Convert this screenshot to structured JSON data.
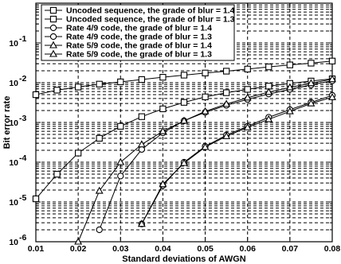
{
  "chart_data": {
    "type": "line",
    "title": "",
    "xlabel": "Standard deviations of AWGN",
    "ylabel": "Bit error rate",
    "xlim": [
      0.01,
      0.08
    ],
    "ylim": [
      1e-06,
      1
    ],
    "yscale": "log",
    "grid": "dashed",
    "legend_position": "top-left",
    "x_ticks": [
      "0.01",
      "0.02",
      "0.03",
      "0.04",
      "0.05",
      "0.06",
      "0.07",
      "0.08"
    ],
    "y_ticks": [
      {
        "base": "10",
        "exp": "-6",
        "value": 1e-06
      },
      {
        "base": "10",
        "exp": "-5",
        "value": 1e-05
      },
      {
        "base": "10",
        "exp": "-4",
        "value": 0.0001
      },
      {
        "base": "10",
        "exp": "-3",
        "value": 0.001
      },
      {
        "base": "10",
        "exp": "-2",
        "value": 0.01
      },
      {
        "base": "10",
        "exp": "-1",
        "value": 0.1
      }
    ],
    "series": [
      {
        "name": "Uncoded sequence, the grade of blur = 1.4",
        "marker": "square",
        "x": [
          0.01,
          0.015,
          0.02,
          0.025,
          0.03,
          0.035,
          0.04,
          0.045,
          0.05,
          0.055,
          0.06,
          0.065,
          0.07,
          0.075,
          0.08
        ],
        "y": [
          0.005,
          0.0065,
          0.0078,
          0.0092,
          0.0105,
          0.012,
          0.0137,
          0.0155,
          0.0175,
          0.0195,
          0.022,
          0.025,
          0.028,
          0.031,
          0.035
        ]
      },
      {
        "name": "Uncoded sequence, the grade of blur = 1.3",
        "marker": "square",
        "x": [
          0.01,
          0.015,
          0.02,
          0.025,
          0.03,
          0.035,
          0.04,
          0.045,
          0.05,
          0.055,
          0.06,
          0.065,
          0.07,
          0.075,
          0.08
        ],
        "y": [
          1.2e-05,
          5e-05,
          0.00017,
          0.0004,
          0.0008,
          0.0014,
          0.0022,
          0.0032,
          0.0044,
          0.0056,
          0.0068,
          0.0082,
          0.0096,
          0.011,
          0.0125
        ]
      },
      {
        "name": "Rate 4/9 code, the grade of blur = 1.4",
        "marker": "circle",
        "x": [
          0.035,
          0.04,
          0.045,
          0.05,
          0.055,
          0.06,
          0.065,
          0.07,
          0.075,
          0.08
        ],
        "y": [
          2.8e-06,
          2.6e-05,
          0.0001,
          0.00025,
          0.00048,
          0.0008,
          0.00135,
          0.0021,
          0.0032,
          0.0048
        ]
      },
      {
        "name": "Rate 4/9 code, the grade of blur = 1.3",
        "marker": "circle",
        "x": [
          0.025,
          0.03,
          0.035,
          0.04,
          0.045,
          0.05,
          0.055,
          0.06,
          0.065,
          0.07,
          0.075,
          0.08
        ],
        "y": [
          2e-06,
          4.5e-05,
          0.00021,
          0.00055,
          0.0011,
          0.0018,
          0.0027,
          0.0038,
          0.0052,
          0.0068,
          0.0088,
          0.0112
        ]
      },
      {
        "name": "Rate 5/9 code, the grade of blur = 1.4",
        "marker": "triangle",
        "x": [
          0.035,
          0.04,
          0.045,
          0.05,
          0.055,
          0.06,
          0.065,
          0.07,
          0.075,
          0.08
        ],
        "y": [
          2.8e-06,
          2.8e-05,
          9.5e-05,
          0.00024,
          0.00045,
          0.00075,
          0.0012,
          0.0019,
          0.003,
          0.0043
        ]
      },
      {
        "name": "Rate 5/9 code, the grade of blur = 1.3",
        "marker": "triangle",
        "x": [
          0.02,
          0.025,
          0.03,
          0.035,
          0.04,
          0.045,
          0.05,
          0.055,
          0.06,
          0.065,
          0.07,
          0.075,
          0.08
        ],
        "y": [
          1e-06,
          1.9e-05,
          0.0001,
          0.00028,
          0.0006,
          0.0011,
          0.0019,
          0.0029,
          0.0042,
          0.0058,
          0.0076,
          0.0097,
          0.0122
        ]
      }
    ]
  }
}
